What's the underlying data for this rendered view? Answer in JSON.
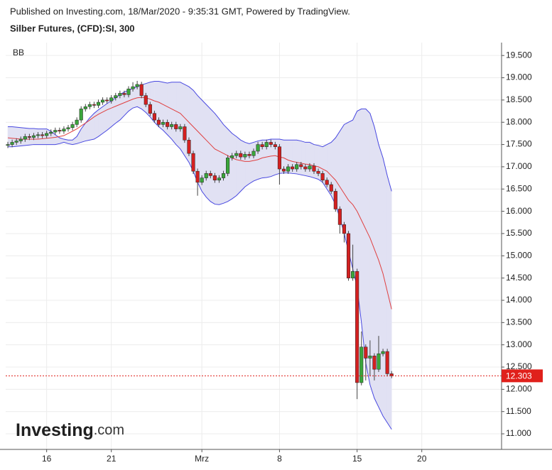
{
  "chart_data": {
    "type": "candlestick",
    "title": "Published on Investing.com, 18/Mar/2020 - 9:35:31 GMT, Powered by TradingView.",
    "subtitle": "Silber Futures, (CFD):SI, 300",
    "indicator_label": "BB",
    "logo": "Investing",
    "logo_suffix": ".com",
    "categories": [
      null,
      null,
      null,
      null,
      null,
      null,
      null,
      null,
      null,
      "16",
      null,
      null,
      null,
      null,
      null,
      null,
      null,
      null,
      null,
      null,
      null,
      null,
      null,
      null,
      "21",
      null,
      null,
      null,
      null,
      null,
      null,
      null,
      null,
      null,
      null,
      null,
      null,
      null,
      null,
      null,
      null,
      null,
      null,
      null,
      null,
      "Mrz",
      null,
      null,
      null,
      null,
      null,
      null,
      null,
      null,
      null,
      null,
      null,
      null,
      null,
      null,
      null,
      null,
      null,
      "8",
      null,
      null,
      null,
      null,
      null,
      null,
      null,
      null,
      null,
      null,
      null,
      null,
      null,
      null,
      null,
      null,
      null,
      "15",
      null,
      null,
      null,
      null,
      null,
      null,
      null,
      null,
      null,
      null,
      null,
      null,
      null,
      null,
      "20",
      null,
      null,
      null,
      null,
      null,
      null,
      null,
      null,
      null,
      null,
      null,
      null,
      null,
      null,
      null,
      null,
      null,
      null
    ],
    "open": [
      17.48,
      17.5,
      17.55,
      17.58,
      17.62,
      17.68,
      17.66,
      17.7,
      17.72,
      17.7,
      17.75,
      17.78,
      17.82,
      17.8,
      17.85,
      17.88,
      17.95,
      18.05,
      18.3,
      18.35,
      18.4,
      18.38,
      18.45,
      18.5,
      18.48,
      18.55,
      18.6,
      18.65,
      18.62,
      18.75,
      18.8,
      18.85,
      18.6,
      18.4,
      18.2,
      18.05,
      17.95,
      18.0,
      17.9,
      17.95,
      17.85,
      17.9,
      17.6,
      17.3,
      16.9,
      16.65,
      16.75,
      16.85,
      16.8,
      16.7,
      16.75,
      16.85,
      17.2,
      17.25,
      17.3,
      17.22,
      17.28,
      17.25,
      17.35,
      17.5,
      17.45,
      17.55,
      17.5,
      17.45,
      16.95,
      16.9,
      17.0,
      16.95,
      17.05,
      17.0,
      16.95,
      17.02,
      16.9,
      16.85,
      16.7,
      16.6,
      16.45,
      16.05,
      15.7,
      15.5,
      14.5,
      14.65,
      12.15,
      12.95,
      12.7,
      12.75,
      12.45,
      12.8,
      12.85,
      12.35,
      null,
      null,
      null,
      null,
      null,
      null,
      null,
      null,
      null,
      null,
      null,
      null,
      null,
      null,
      null,
      null,
      null,
      null,
      null,
      null,
      null,
      null,
      null,
      null,
      null
    ],
    "high": [
      17.56,
      17.61,
      17.64,
      17.68,
      17.74,
      17.74,
      17.76,
      17.78,
      17.78,
      17.81,
      17.84,
      17.88,
      17.88,
      17.91,
      17.94,
      18.01,
      18.11,
      18.36,
      18.41,
      18.46,
      18.46,
      18.51,
      18.56,
      18.56,
      18.61,
      18.66,
      18.71,
      18.71,
      18.81,
      18.9,
      18.93,
      18.91,
      18.66,
      18.46,
      18.26,
      18.11,
      18.06,
      18.06,
      18.01,
      18.01,
      17.96,
      17.96,
      17.66,
      17.36,
      16.96,
      16.81,
      16.91,
      16.91,
      16.86,
      16.81,
      16.91,
      17.26,
      17.31,
      17.36,
      17.36,
      17.34,
      17.34,
      17.41,
      17.56,
      17.56,
      17.61,
      17.61,
      17.56,
      17.51,
      17.01,
      17.06,
      17.06,
      17.11,
      17.11,
      17.06,
      17.08,
      17.08,
      16.96,
      16.91,
      16.76,
      16.66,
      16.51,
      16.11,
      15.76,
      15.56,
      15.25,
      14.71,
      13.3,
      13.01,
      13.1,
      12.81,
      13.2,
      12.91,
      12.91,
      12.41,
      null,
      null,
      null,
      null,
      null,
      null,
      null,
      null,
      null,
      null,
      null,
      null,
      null,
      null,
      null,
      null,
      null,
      null,
      null,
      null,
      null,
      null,
      null,
      null,
      null
    ],
    "low": [
      17.42,
      17.44,
      17.49,
      17.52,
      17.56,
      17.6,
      17.6,
      17.64,
      17.64,
      17.64,
      17.69,
      17.72,
      17.74,
      17.74,
      17.79,
      17.82,
      17.89,
      17.99,
      18.24,
      18.29,
      18.32,
      18.32,
      18.39,
      18.42,
      18.42,
      18.49,
      18.54,
      18.56,
      18.56,
      18.69,
      18.74,
      18.54,
      18.34,
      18.14,
      17.99,
      17.89,
      17.89,
      17.84,
      17.84,
      17.79,
      17.79,
      17.54,
      17.24,
      16.84,
      16.35,
      16.59,
      16.69,
      16.74,
      16.64,
      16.64,
      16.69,
      16.79,
      17.14,
      17.19,
      17.16,
      17.16,
      17.19,
      17.19,
      17.29,
      17.39,
      17.39,
      17.44,
      17.39,
      16.6,
      16.84,
      16.84,
      16.89,
      16.89,
      16.94,
      16.89,
      16.89,
      16.84,
      16.79,
      16.64,
      16.54,
      16.39,
      15.99,
      15.5,
      15.3,
      14.44,
      14.44,
      11.78,
      12.09,
      12.2,
      12.3,
      12.2,
      12.39,
      12.74,
      12.29,
      12.25,
      null,
      null,
      null,
      null,
      null,
      null,
      null,
      null,
      null,
      null,
      null,
      null,
      null,
      null,
      null,
      null,
      null,
      null,
      null,
      null,
      null,
      null,
      null,
      null,
      null
    ],
    "close": [
      17.5,
      17.55,
      17.58,
      17.62,
      17.68,
      17.66,
      17.7,
      17.72,
      17.7,
      17.75,
      17.78,
      17.82,
      17.8,
      17.85,
      17.88,
      17.95,
      18.05,
      18.3,
      18.35,
      18.4,
      18.38,
      18.45,
      18.5,
      18.48,
      18.55,
      18.6,
      18.65,
      18.62,
      18.75,
      18.8,
      18.85,
      18.6,
      18.4,
      18.2,
      18.05,
      17.95,
      18.0,
      17.9,
      17.95,
      17.85,
      17.9,
      17.6,
      17.3,
      16.9,
      16.65,
      16.75,
      16.85,
      16.8,
      16.7,
      16.75,
      16.85,
      17.2,
      17.25,
      17.3,
      17.22,
      17.28,
      17.25,
      17.35,
      17.5,
      17.45,
      17.55,
      17.5,
      17.45,
      16.95,
      16.9,
      17.0,
      16.95,
      17.05,
      17.0,
      16.95,
      17.02,
      16.9,
      16.85,
      16.7,
      16.6,
      16.45,
      16.05,
      15.7,
      15.5,
      14.5,
      14.65,
      12.15,
      12.95,
      12.7,
      12.75,
      12.45,
      12.8,
      12.85,
      12.35,
      12.303,
      null,
      null,
      null,
      null,
      null,
      null,
      null,
      null,
      null,
      null,
      null,
      null,
      null,
      null,
      null,
      null,
      null,
      null,
      null,
      null,
      null,
      null,
      null,
      null,
      null
    ],
    "up_color": "#3aa63a",
    "down_color": "#d42020",
    "last_price_color": "#e0201b",
    "bands": {
      "fill": "#e1e1f3",
      "upper": {
        "color": "#4848e0",
        "values": [
          17.9,
          17.9,
          17.89,
          17.88,
          17.87,
          17.86,
          17.86,
          17.85,
          17.85,
          17.85,
          17.8,
          17.72,
          17.65,
          17.62,
          17.6,
          17.6,
          17.68,
          17.85,
          17.98,
          18.1,
          18.2,
          18.28,
          18.35,
          18.42,
          18.48,
          18.55,
          18.62,
          18.68,
          18.72,
          18.76,
          18.8,
          18.84,
          18.87,
          18.9,
          18.92,
          18.92,
          18.9,
          18.88,
          18.9,
          18.9,
          18.9,
          18.85,
          18.8,
          18.72,
          18.6,
          18.5,
          18.4,
          18.3,
          18.2,
          18.08,
          17.95,
          17.85,
          17.75,
          17.68,
          17.6,
          17.55,
          17.52,
          17.55,
          17.58,
          17.6,
          17.6,
          17.62,
          17.62,
          17.62,
          17.6,
          17.6,
          17.6,
          17.6,
          17.58,
          17.55,
          17.55,
          17.5,
          17.48,
          17.45,
          17.5,
          17.55,
          17.65,
          17.8,
          17.95,
          18.0,
          18.05,
          18.25,
          18.3,
          18.3,
          18.2,
          17.9,
          17.5,
          17.2,
          16.8,
          16.45,
          null,
          null,
          null,
          null,
          null,
          null,
          null,
          null,
          null,
          null,
          null,
          null,
          null,
          null,
          null,
          null,
          null,
          null,
          null,
          null,
          null,
          null,
          null,
          null,
          null
        ]
      },
      "middle": {
        "color": "#e04040",
        "values": [
          17.65,
          17.64,
          17.63,
          17.62,
          17.62,
          17.62,
          17.62,
          17.62,
          17.63,
          17.64,
          17.65,
          17.66,
          17.68,
          17.7,
          17.75,
          17.8,
          17.85,
          17.92,
          17.98,
          18.05,
          18.12,
          18.18,
          18.23,
          18.28,
          18.32,
          18.36,
          18.4,
          18.44,
          18.48,
          18.52,
          18.55,
          18.56,
          18.55,
          18.52,
          18.48,
          18.45,
          18.4,
          18.35,
          18.3,
          18.25,
          18.2,
          18.1,
          18.0,
          17.9,
          17.8,
          17.7,
          17.6,
          17.5,
          17.4,
          17.35,
          17.3,
          17.25,
          17.2,
          17.16,
          17.14,
          17.12,
          17.12,
          17.14,
          17.16,
          17.2,
          17.22,
          17.24,
          17.25,
          17.22,
          17.2,
          17.15,
          17.12,
          17.1,
          17.08,
          17.06,
          17.05,
          17.02,
          17.0,
          16.95,
          16.9,
          16.8,
          16.7,
          16.55,
          16.4,
          16.25,
          16.15,
          16.0,
          15.8,
          15.6,
          15.4,
          15.15,
          14.9,
          14.6,
          14.2,
          13.8,
          null,
          null,
          null,
          null,
          null,
          null,
          null,
          null,
          null,
          null,
          null,
          null,
          null,
          null,
          null,
          null,
          null,
          null,
          null,
          null,
          null,
          null,
          null,
          null,
          null
        ]
      },
      "lower": {
        "color": "#4848e0",
        "values": [
          17.45,
          17.45,
          17.46,
          17.47,
          17.48,
          17.49,
          17.5,
          17.5,
          17.5,
          17.5,
          17.5,
          17.5,
          17.52,
          17.55,
          17.52,
          17.5,
          17.52,
          17.55,
          17.58,
          17.6,
          17.62,
          17.68,
          17.75,
          17.82,
          17.9,
          17.98,
          18.05,
          18.15,
          18.25,
          18.32,
          18.35,
          18.3,
          18.22,
          18.12,
          18.0,
          17.9,
          17.82,
          17.72,
          17.62,
          17.5,
          17.4,
          17.25,
          17.1,
          16.9,
          16.65,
          16.45,
          16.32,
          16.22,
          16.16,
          16.15,
          16.18,
          16.22,
          16.28,
          16.35,
          16.45,
          16.55,
          16.62,
          16.68,
          16.72,
          16.75,
          16.76,
          16.78,
          16.82,
          16.85,
          16.86,
          16.86,
          16.85,
          16.84,
          16.82,
          16.8,
          16.78,
          16.75,
          16.72,
          16.65,
          16.5,
          16.35,
          16.15,
          15.85,
          15.5,
          15.1,
          14.7,
          14.3,
          13.5,
          12.6,
          12.1,
          11.8,
          11.6,
          11.4,
          11.25,
          11.1,
          null,
          null,
          null,
          null,
          null,
          null,
          null,
          null,
          null,
          null,
          null,
          null,
          null,
          null,
          null,
          null,
          null,
          null,
          null,
          null,
          null,
          null,
          null,
          null,
          null
        ]
      }
    },
    "ylim": [
      10.65,
      19.79
    ],
    "yticks": [
      {
        "value": 11,
        "label": "11.000"
      },
      {
        "value": 11.5,
        "label": "11.500"
      },
      {
        "value": 12,
        "label": "12.000"
      },
      {
        "value": 12.5,
        "label": "12.500"
      },
      {
        "value": 13,
        "label": "13.000"
      },
      {
        "value": 13.5,
        "label": "13.500"
      },
      {
        "value": 14,
        "label": "14.000"
      },
      {
        "value": 14.5,
        "label": "14.500"
      },
      {
        "value": 15,
        "label": "15.000"
      },
      {
        "value": 15.5,
        "label": "15.500"
      },
      {
        "value": 16,
        "label": "16.000"
      },
      {
        "value": 16.5,
        "label": "16.500"
      },
      {
        "value": 17,
        "label": "17.000"
      },
      {
        "value": 17.5,
        "label": "17.500"
      },
      {
        "value": 18,
        "label": "18.000"
      },
      {
        "value": 18.5,
        "label": "18.500"
      },
      {
        "value": 19,
        "label": "19.000"
      },
      {
        "value": 19.5,
        "label": "19.500"
      }
    ],
    "grid": true
  }
}
